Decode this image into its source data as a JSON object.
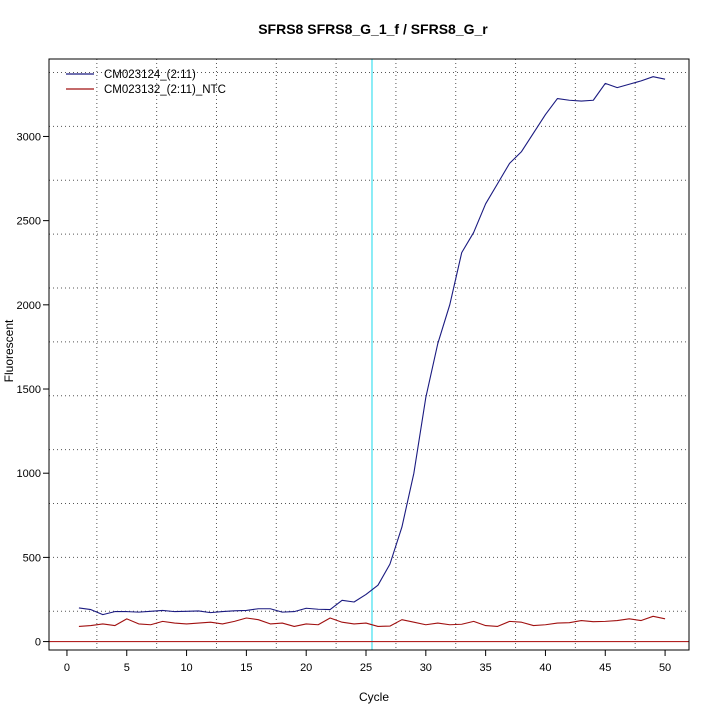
{
  "chart_data": {
    "type": "line",
    "title": "SFRS8  SFRS8_G_1_f / SFRS8_G_r",
    "xlabel": "Cycle",
    "ylabel": "Fluorescent",
    "xlim": [
      -1.5,
      52
    ],
    "ylim": [
      -50,
      3460
    ],
    "x_ticks": [
      0,
      5,
      10,
      15,
      20,
      25,
      30,
      35,
      40,
      45,
      50
    ],
    "y_ticks": [
      0,
      500,
      1000,
      1500,
      2000,
      2500,
      3000
    ],
    "grid_x": [
      2.5,
      7.5,
      12.5,
      17.5,
      22.5,
      27.5,
      32.5,
      37.5,
      42.5,
      47.5
    ],
    "grid_y": [
      180,
      500,
      820,
      1140,
      1460,
      1780,
      2100,
      2420,
      2740,
      3060,
      3380
    ],
    "grid": true,
    "legend_position": "top-left",
    "threshold_line": {
      "y": 0,
      "color": "#b22222"
    },
    "cycle_marker_line": {
      "x": 25.5,
      "color": "#40e0f0"
    },
    "x": [
      1,
      2,
      3,
      4,
      5,
      6,
      7,
      8,
      9,
      10,
      11,
      12,
      13,
      14,
      15,
      16,
      17,
      18,
      19,
      20,
      21,
      22,
      23,
      24,
      25,
      26,
      27,
      28,
      29,
      30,
      31,
      32,
      33,
      34,
      35,
      36,
      37,
      38,
      39,
      40,
      41,
      42,
      43,
      44,
      45,
      46,
      47,
      48,
      49,
      50
    ],
    "series": [
      {
        "name": "CM023124_(2:11)",
        "color": "#1a1a80",
        "values": [
          200,
          190,
          160,
          178,
          178,
          175,
          180,
          185,
          178,
          180,
          182,
          172,
          178,
          183,
          185,
          195,
          195,
          175,
          178,
          198,
          192,
          190,
          245,
          235,
          280,
          335,
          460,
          680,
          1000,
          1450,
          1770,
          2000,
          2310,
          2430,
          2600,
          2720,
          2840,
          2910,
          3020,
          3130,
          3225,
          3215,
          3210,
          3215,
          3315,
          3290,
          3310,
          3330,
          3355,
          3340
        ]
      },
      {
        "name": "CM023132_(2:11)_NTC",
        "color": "#a01010",
        "values": [
          90,
          95,
          105,
          95,
          135,
          105,
          100,
          120,
          110,
          105,
          110,
          115,
          105,
          120,
          140,
          130,
          105,
          110,
          90,
          105,
          100,
          140,
          115,
          105,
          110,
          90,
          92,
          130,
          115,
          100,
          110,
          100,
          103,
          120,
          95,
          90,
          120,
          115,
          95,
          100,
          110,
          112,
          125,
          118,
          120,
          125,
          135,
          125,
          150,
          135
        ]
      }
    ]
  }
}
